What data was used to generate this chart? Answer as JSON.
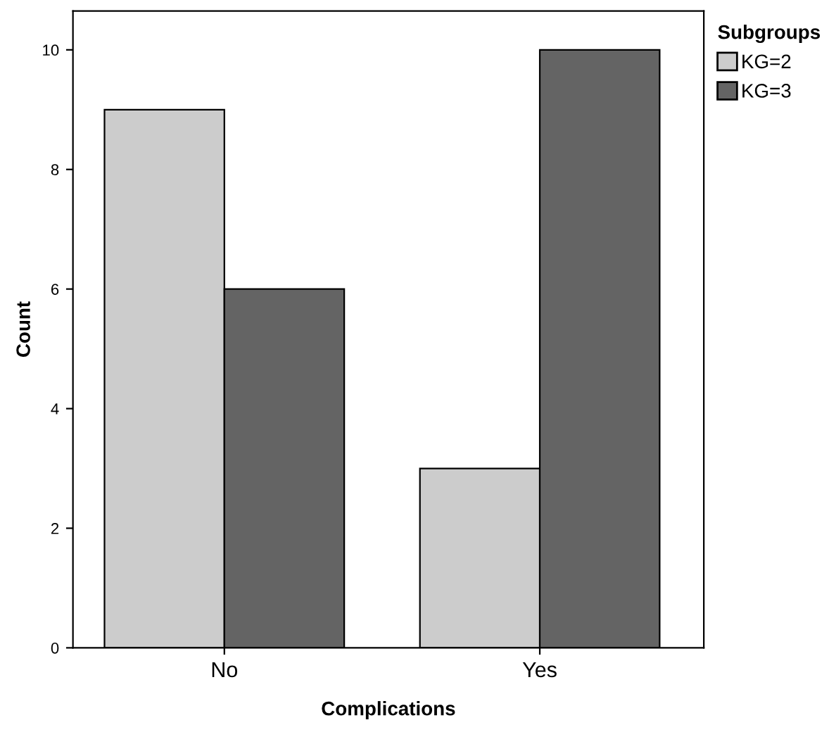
{
  "chart_data": {
    "type": "bar",
    "xlabel": "Complications",
    "ylabel": "Count",
    "legend_title": "Subgroups",
    "categories": [
      "No",
      "Yes"
    ],
    "series": [
      {
        "name": "KG=2",
        "color": "#cccccc",
        "values": [
          9,
          3
        ]
      },
      {
        "name": "KG=3",
        "color": "#646464",
        "values": [
          6,
          10
        ]
      }
    ],
    "ylim": [
      0,
      10.65
    ],
    "yticks": [
      0,
      2,
      4,
      6,
      8,
      10
    ],
    "grid": false,
    "legend": "top right"
  }
}
